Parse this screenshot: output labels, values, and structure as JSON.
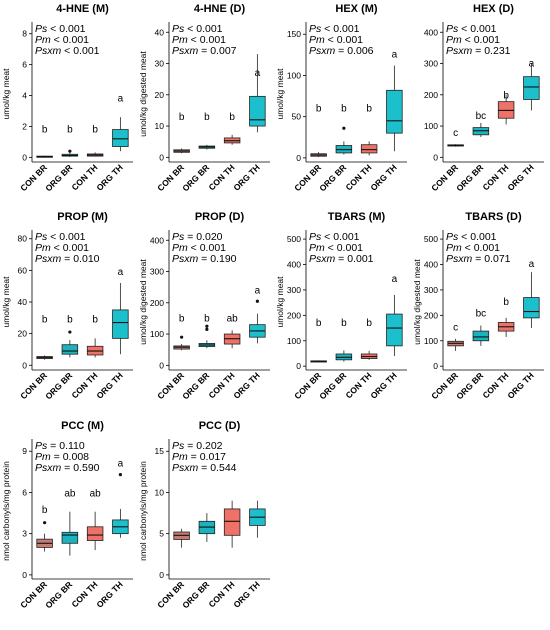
{
  "colors": {
    "CON BR": "#c77a72",
    "ORG BR": "#1bb3be",
    "CON TH": "#ee7268",
    "ORG TH": "#1bc0cc"
  },
  "chart_data": [
    {
      "type": "box",
      "title": "4-HNE (M)",
      "ylabel": "umol/kg meat",
      "categories": [
        "CON BR",
        "ORG BR",
        "CON TH",
        "ORG TH"
      ],
      "yticks": [
        0,
        2,
        4,
        6,
        8
      ],
      "ylim": [
        -0.3,
        8.5
      ],
      "stats": [
        [
          "Ps",
          " < 0.001"
        ],
        [
          "Pm",
          " < 0.001"
        ],
        [
          "Psxm",
          " < 0.001"
        ]
      ],
      "letters": [
        "b",
        "b",
        "b",
        "a"
      ],
      "letter_y": 1.6,
      "letter_y_top": 3.6,
      "boxes": [
        {
          "min": 0.0,
          "q1": 0.02,
          "median": 0.05,
          "q3": 0.08,
          "max": 0.12,
          "outliers": []
        },
        {
          "min": 0.03,
          "q1": 0.08,
          "median": 0.12,
          "q3": 0.2,
          "max": 0.3,
          "outliers": [
            0.4
          ]
        },
        {
          "min": 0.05,
          "q1": 0.08,
          "median": 0.15,
          "q3": 0.22,
          "max": 0.32,
          "outliers": []
        },
        {
          "min": 0.4,
          "q1": 0.7,
          "median": 1.2,
          "q3": 1.8,
          "max": 2.6,
          "outliers": []
        }
      ]
    },
    {
      "type": "box",
      "title": "4-HNE (D)",
      "ylabel": "umol/kg digested meat",
      "categories": [
        "CON BR",
        "ORG BR",
        "CON TH",
        "ORG TH"
      ],
      "yticks": [
        0,
        10,
        20,
        30,
        40
      ],
      "ylim": [
        -1.5,
        42
      ],
      "stats": [
        [
          "Ps",
          " < 0.001"
        ],
        [
          "Pm",
          " < 0.001"
        ],
        [
          "Psxm",
          " = 0.007"
        ]
      ],
      "letters": [
        "b",
        "b",
        "b",
        "a"
      ],
      "letter_y": 12,
      "letter_y_top": 26,
      "boxes": [
        {
          "min": 1.3,
          "q1": 1.6,
          "median": 2.0,
          "q3": 2.4,
          "max": 2.8,
          "outliers": []
        },
        {
          "min": 2.5,
          "q1": 2.9,
          "median": 3.3,
          "q3": 3.6,
          "max": 4.0,
          "outliers": []
        },
        {
          "min": 4.0,
          "q1": 4.6,
          "median": 5.3,
          "q3": 6.2,
          "max": 7.2,
          "outliers": []
        },
        {
          "min": 8.0,
          "q1": 10.0,
          "median": 12.0,
          "q3": 19.5,
          "max": 33.0,
          "outliers": []
        }
      ]
    },
    {
      "type": "box",
      "title": "HEX (M)",
      "ylabel": "umol/kg meat",
      "categories": [
        "CON BR",
        "ORG BR",
        "CON TH",
        "ORG TH"
      ],
      "yticks": [
        0,
        50,
        100,
        150
      ],
      "ylim": [
        -5,
        160
      ],
      "stats": [
        [
          "Ps",
          " < 0.001"
        ],
        [
          "Pm",
          " < 0.001"
        ],
        [
          "Psxm",
          " = 0.006"
        ]
      ],
      "letters": [
        "b",
        "b",
        "b",
        "a"
      ],
      "letter_y": 56,
      "letter_y_top": 122,
      "boxes": [
        {
          "min": 1,
          "q1": 2,
          "median": 3.5,
          "q3": 5,
          "max": 7,
          "outliers": []
        },
        {
          "min": 4,
          "q1": 6,
          "median": 10,
          "q3": 15,
          "max": 20,
          "outliers": [
            36
          ]
        },
        {
          "min": 3,
          "q1": 6,
          "median": 10,
          "q3": 16,
          "max": 20,
          "outliers": []
        },
        {
          "min": 8,
          "q1": 30,
          "median": 45,
          "q3": 82,
          "max": 112,
          "outliers": []
        }
      ]
    },
    {
      "type": "box",
      "title": "HEX (D)",
      "ylabel": "",
      "categories": [
        "CON BR",
        "ORG BR",
        "CON TH",
        "ORG TH"
      ],
      "yticks": [
        0,
        100,
        200,
        300,
        400
      ],
      "ylim": [
        -15,
        420
      ],
      "stats": [
        [
          "Ps",
          " < 0.001"
        ],
        [
          "Pm",
          " < 0.001"
        ],
        [
          "Psxm",
          " = 0.231"
        ]
      ],
      "letters": [
        "c",
        "bc",
        "b",
        "a"
      ],
      "letter_y_list": [
        68,
        122,
        188,
        290
      ],
      "boxes": [
        {
          "min": 34,
          "q1": 36,
          "median": 38,
          "q3": 40,
          "max": 42,
          "outliers": []
        },
        {
          "min": 65,
          "q1": 72,
          "median": 85,
          "q3": 95,
          "max": 110,
          "outliers": []
        },
        {
          "min": 105,
          "q1": 125,
          "median": 150,
          "q3": 178,
          "max": 200,
          "outliers": []
        },
        {
          "min": 150,
          "q1": 185,
          "median": 225,
          "q3": 258,
          "max": 300,
          "outliers": []
        }
      ]
    },
    {
      "type": "box",
      "title": "PROP (M)",
      "ylabel": "umol/kg meat",
      "categories": [
        "CON BR",
        "ORG BR",
        "CON TH",
        "ORG TH"
      ],
      "yticks": [
        0,
        20,
        40,
        60,
        80
      ],
      "ylim": [
        -3,
        83
      ],
      "stats": [
        [
          "Ps",
          " < 0.001"
        ],
        [
          "Pm",
          " < 0.001"
        ],
        [
          "Psxm",
          " = 0.010"
        ]
      ],
      "letters": [
        "b",
        "b",
        "b",
        "a"
      ],
      "letter_y": 27,
      "letter_y_top": 57,
      "boxes": [
        {
          "min": 3.5,
          "q1": 4.2,
          "median": 5,
          "q3": 5.5,
          "max": 6.2,
          "outliers": []
        },
        {
          "min": 5,
          "q1": 7,
          "median": 9,
          "q3": 13,
          "max": 16,
          "outliers": [
            21
          ]
        },
        {
          "min": 5,
          "q1": 6.5,
          "median": 9,
          "q3": 12,
          "max": 17,
          "outliers": []
        },
        {
          "min": 7,
          "q1": 17,
          "median": 27,
          "q3": 35,
          "max": 52,
          "outliers": []
        }
      ]
    },
    {
      "type": "box",
      "title": "PROP (D)",
      "ylabel": "umol/kg digested meat",
      "categories": [
        "CON BR",
        "ORG BR",
        "CON TH",
        "ORG TH"
      ],
      "yticks": [
        0,
        100,
        200,
        300,
        400
      ],
      "ylim": [
        -15,
        420
      ],
      "stats": [
        [
          "Ps",
          " = 0.020"
        ],
        [
          "Pm",
          " < 0.001"
        ],
        [
          "Psxm",
          " = 0.190"
        ]
      ],
      "letters": [
        "b",
        "b",
        "ab",
        "a"
      ],
      "letter_y": 140,
      "letter_y_top": 230,
      "boxes": [
        {
          "min": 48,
          "q1": 52,
          "median": 58,
          "q3": 62,
          "max": 68,
          "outliers": [
            90
          ]
        },
        {
          "min": 55,
          "q1": 60,
          "median": 65,
          "q3": 70,
          "max": 80,
          "outliers": [
            115,
            125
          ]
        },
        {
          "min": 55,
          "q1": 68,
          "median": 85,
          "q3": 100,
          "max": 112,
          "outliers": []
        },
        {
          "min": 70,
          "q1": 90,
          "median": 110,
          "q3": 130,
          "max": 165,
          "outliers": [
            205
          ]
        }
      ]
    },
    {
      "type": "box",
      "title": "TBARS (M)",
      "ylabel": "umol/kg meat",
      "categories": [
        "CON BR",
        "ORG BR",
        "CON TH",
        "ORG TH"
      ],
      "yticks": [
        0,
        100,
        200,
        300,
        400,
        500
      ],
      "ylim": [
        -15,
        520
      ],
      "stats": [
        [
          "Ps",
          " < 0.001"
        ],
        [
          "Pm",
          " < 0.001"
        ],
        [
          "Psxm",
          " = 0.001"
        ]
      ],
      "letters": [
        "b",
        "b",
        "b",
        "a"
      ],
      "letter_y": 158,
      "letter_y_top": 332,
      "boxes": [
        {
          "min": 15,
          "q1": 17,
          "median": 19,
          "q3": 21,
          "max": 23,
          "outliers": []
        },
        {
          "min": 18,
          "q1": 25,
          "median": 35,
          "q3": 48,
          "max": 62,
          "outliers": []
        },
        {
          "min": 25,
          "q1": 30,
          "median": 38,
          "q3": 48,
          "max": 60,
          "outliers": []
        },
        {
          "min": 40,
          "q1": 80,
          "median": 150,
          "q3": 205,
          "max": 280,
          "outliers": []
        }
      ]
    },
    {
      "type": "box",
      "title": "TBARS (D)",
      "ylabel": "umol/kg digested meat",
      "categories": [
        "CON BR",
        "ORG BR",
        "CON TH",
        "ORG TH"
      ],
      "yticks": [
        0,
        100,
        200,
        300,
        400,
        500
      ],
      "ylim": [
        -15,
        520
      ],
      "stats": [
        [
          "Ps",
          " < 0.001"
        ],
        [
          "Pm",
          " < 0.001"
        ],
        [
          "Psxm",
          " = 0.071"
        ]
      ],
      "letters": [
        "c",
        "bc",
        "b",
        "a"
      ],
      "letter_y_list": [
        140,
        195,
        240,
        390
      ],
      "boxes": [
        {
          "min": 60,
          "q1": 80,
          "median": 90,
          "q3": 98,
          "max": 108,
          "outliers": []
        },
        {
          "min": 80,
          "q1": 100,
          "median": 115,
          "q3": 138,
          "max": 160,
          "outliers": []
        },
        {
          "min": 115,
          "q1": 138,
          "median": 155,
          "q3": 172,
          "max": 190,
          "outliers": []
        },
        {
          "min": 150,
          "q1": 190,
          "median": 215,
          "q3": 270,
          "max": 370,
          "outliers": []
        }
      ]
    },
    {
      "type": "box",
      "title": "PCC (M)",
      "ylabel": "nmol carbonyls/mg protein",
      "categories": [
        "CON BR",
        "ORG BR",
        "CON TH",
        "ORG TH"
      ],
      "yticks": [
        0,
        3,
        6,
        9
      ],
      "ylim": [
        -0.3,
        9.6
      ],
      "stats": [
        [
          "Ps",
          " = 0.110"
        ],
        [
          "Pm",
          " = 0.008"
        ],
        [
          "Psxm",
          " = 0.590"
        ]
      ],
      "letters": [
        "b",
        "ab",
        "ab",
        "a"
      ],
      "letter_y_list": [
        4.5,
        5.7,
        5.7,
        7.9
      ],
      "boxes": [
        {
          "min": 1.7,
          "q1": 2.0,
          "median": 2.3,
          "q3": 2.6,
          "max": 3.0,
          "outliers": [
            3.8
          ]
        },
        {
          "min": 1.4,
          "q1": 2.3,
          "median": 2.9,
          "q3": 3.1,
          "max": 4.6,
          "outliers": []
        },
        {
          "min": 1.8,
          "q1": 2.5,
          "median": 2.9,
          "q3": 3.5,
          "max": 4.6,
          "outliers": []
        },
        {
          "min": 2.7,
          "q1": 3.0,
          "median": 3.5,
          "q3": 4.0,
          "max": 4.8,
          "outliers": [
            7.3
          ]
        }
      ]
    },
    {
      "type": "box",
      "title": "PCC (D)",
      "ylabel": "nmol carbonyls/mg protein",
      "categories": [
        "CON BR",
        "ORG BR",
        "CON TH",
        "ORG TH"
      ],
      "yticks": [
        0,
        5,
        10,
        15
      ],
      "ylim": [
        -0.5,
        16
      ],
      "stats": [
        [
          "Ps",
          " = 0.202"
        ],
        [
          "Pm",
          " = 0.017"
        ],
        [
          "Psxm",
          " = 0.544"
        ]
      ],
      "letters": [
        "",
        "",
        "",
        ""
      ],
      "letter_y": 0,
      "boxes": [
        {
          "min": 3.3,
          "q1": 4.3,
          "median": 4.8,
          "q3": 5.2,
          "max": 5.6,
          "outliers": []
        },
        {
          "min": 4.0,
          "q1": 5.0,
          "median": 5.8,
          "q3": 6.5,
          "max": 7.5,
          "outliers": []
        },
        {
          "min": 3.3,
          "q1": 4.8,
          "median": 6.5,
          "q3": 8.0,
          "max": 9.0,
          "outliers": []
        },
        {
          "min": 4.5,
          "q1": 6.0,
          "median": 7.0,
          "q3": 8.0,
          "max": 9.0,
          "outliers": []
        }
      ]
    }
  ]
}
